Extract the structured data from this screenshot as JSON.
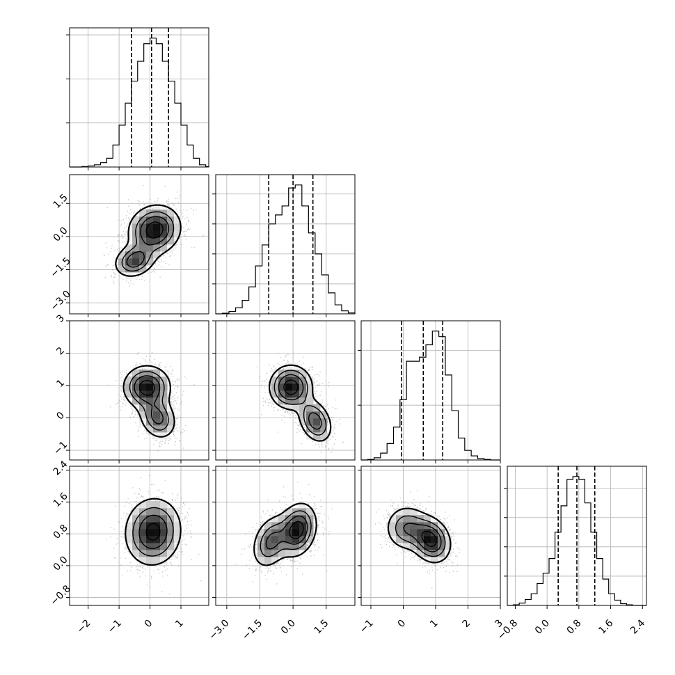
{
  "chart_data": {
    "type": "corner",
    "grid": true,
    "quantile_lines": "dashed",
    "variables": [
      {
        "range": [
          -2.6,
          1.9
        ],
        "ticks": [
          -2,
          -1,
          0,
          1
        ],
        "tick_labels": [
          "−2",
          "−1",
          "0",
          "1"
        ],
        "quantiles": [
          -0.6,
          0.05,
          0.6
        ],
        "histogram": {
          "bin_edges": [
            -2.6,
            -2.4,
            -2.2,
            -2.0,
            -1.8,
            -1.6,
            -1.4,
            -1.2,
            -1.0,
            -0.8,
            -0.6,
            -0.4,
            -0.2,
            0.0,
            0.2,
            0.4,
            0.6,
            0.8,
            1.0,
            1.2,
            1.4,
            1.6,
            1.8,
            1.9
          ],
          "counts": [
            0,
            0,
            2,
            5,
            10,
            20,
            40,
            100,
            190,
            290,
            390,
            480,
            560,
            585,
            560,
            480,
            390,
            290,
            190,
            100,
            40,
            10,
            2
          ]
        }
      },
      {
        "range": [
          -3.5,
          2.8
        ],
        "ticks": [
          -3.0,
          -1.5,
          0.0,
          1.5
        ],
        "tick_labels": [
          "−3.0",
          "−1.5",
          "0.0",
          "1.5"
        ],
        "quantiles": [
          -1.1,
          0.0,
          0.9
        ],
        "histogram": {
          "bin_edges": [
            -3.5,
            -3.2,
            -2.9,
            -2.6,
            -2.3,
            -2.0,
            -1.7,
            -1.4,
            -1.1,
            -0.8,
            -0.5,
            -0.2,
            0.1,
            0.4,
            0.7,
            1.0,
            1.3,
            1.6,
            1.9,
            2.2,
            2.5,
            2.8
          ],
          "counts": [
            0,
            2,
            8,
            20,
            45,
            90,
            160,
            230,
            300,
            330,
            360,
            420,
            430,
            360,
            270,
            200,
            130,
            70,
            30,
            10,
            3
          ]
        }
      },
      {
        "range": [
          -1.3,
          3.0
        ],
        "ticks": [
          -1,
          0,
          1,
          2,
          3
        ],
        "tick_labels": [
          "−1",
          "0",
          "1",
          "2",
          "3"
        ],
        "quantiles": [
          -0.05,
          0.62,
          1.22
        ],
        "histogram": {
          "bin_edges": [
            -1.3,
            -1.1,
            -0.9,
            -0.7,
            -0.5,
            -0.3,
            -0.1,
            0.1,
            0.3,
            0.5,
            0.7,
            0.9,
            1.1,
            1.3,
            1.5,
            1.7,
            1.9,
            2.1,
            2.3,
            2.5,
            2.7,
            2.9,
            3.0
          ],
          "counts": [
            0,
            2,
            8,
            25,
            60,
            120,
            220,
            360,
            360,
            375,
            420,
            470,
            450,
            310,
            180,
            80,
            35,
            15,
            5,
            2,
            0,
            0
          ]
        }
      },
      {
        "range": [
          -1.0,
          2.5
        ],
        "ticks": [
          -0.8,
          0.0,
          0.8,
          1.6,
          2.4
        ],
        "tick_labels": [
          "−0.8",
          "0.0",
          "0.8",
          "1.6",
          "2.4"
        ],
        "quantiles": [
          0.28,
          0.75,
          1.2
        ],
        "histogram": {
          "bin_edges": [
            -1.0,
            -0.85,
            -0.7,
            -0.55,
            -0.4,
            -0.25,
            -0.1,
            0.05,
            0.2,
            0.35,
            0.5,
            0.65,
            0.8,
            0.95,
            1.1,
            1.25,
            1.4,
            1.55,
            1.7,
            1.85,
            2.0,
            2.15,
            2.3,
            2.5
          ],
          "counts": [
            0,
            2,
            8,
            20,
            40,
            75,
            110,
            160,
            250,
            340,
            430,
            440,
            430,
            350,
            250,
            160,
            90,
            40,
            18,
            6,
            2,
            0,
            0
          ]
        }
      }
    ],
    "pairs": [
      {
        "x_var": 0,
        "y_var": 1,
        "y_ticks": [
          -3.0,
          -1.5,
          0.0,
          1.5
        ],
        "y_tick_labels": [
          "−3.0",
          "−1.5",
          "0.0",
          "1.5"
        ],
        "components": [
          {
            "weight": 0.72,
            "mean": [
              0.15,
              0.3
            ],
            "sd": [
              0.45,
              0.6
            ],
            "corr": 0.1
          },
          {
            "weight": 0.28,
            "mean": [
              -0.5,
              -1.1
            ],
            "sd": [
              0.35,
              0.4
            ],
            "corr": 0.2
          }
        ]
      },
      {
        "x_var": 0,
        "y_var": 2,
        "y_ticks": [
          -1,
          0,
          1,
          2,
          3
        ],
        "y_tick_labels": [
          "−1",
          "0",
          "1",
          "2",
          "3"
        ],
        "components": [
          {
            "weight": 0.65,
            "mean": [
              -0.1,
              0.95
            ],
            "sd": [
              0.4,
              0.35
            ],
            "corr": 0
          },
          {
            "weight": 0.35,
            "mean": [
              0.25,
              0.0
            ],
            "sd": [
              0.32,
              0.35
            ],
            "corr": -0.2
          }
        ]
      },
      {
        "x_var": 1,
        "y_var": 2,
        "components": [
          {
            "weight": 0.65,
            "mean": [
              -0.1,
              0.95
            ],
            "sd": [
              0.5,
              0.35
            ],
            "corr": 0
          },
          {
            "weight": 0.35,
            "mean": [
              1.0,
              -0.1
            ],
            "sd": [
              0.4,
              0.35
            ],
            "corr": -0.3
          }
        ]
      },
      {
        "x_var": 0,
        "y_var": 3,
        "y_ticks": [
          -0.8,
          0.0,
          0.8,
          1.6,
          2.4
        ],
        "y_tick_labels": [
          "−0.8",
          "0.0",
          "0.8",
          "1.6",
          "2.4"
        ],
        "components": [
          {
            "weight": 1.0,
            "mean": [
              0.1,
              0.85
            ],
            "sd": [
              0.45,
              0.42
            ],
            "corr": 0.05
          }
        ]
      },
      {
        "x_var": 1,
        "y_var": 3,
        "components": [
          {
            "weight": 0.6,
            "mean": [
              0.2,
              0.9
            ],
            "sd": [
              0.45,
              0.35
            ],
            "corr": 0.2
          },
          {
            "weight": 0.4,
            "mean": [
              -1.0,
              0.6
            ],
            "sd": [
              0.45,
              0.35
            ],
            "corr": 0.3
          }
        ]
      },
      {
        "x_var": 2,
        "y_var": 3,
        "components": [
          {
            "weight": 0.6,
            "mean": [
              0.85,
              0.65
            ],
            "sd": [
              0.32,
              0.3
            ],
            "corr": -0.2
          },
          {
            "weight": 0.4,
            "mean": [
              0.1,
              0.95
            ],
            "sd": [
              0.35,
              0.3
            ],
            "corr": 0
          }
        ]
      }
    ]
  }
}
